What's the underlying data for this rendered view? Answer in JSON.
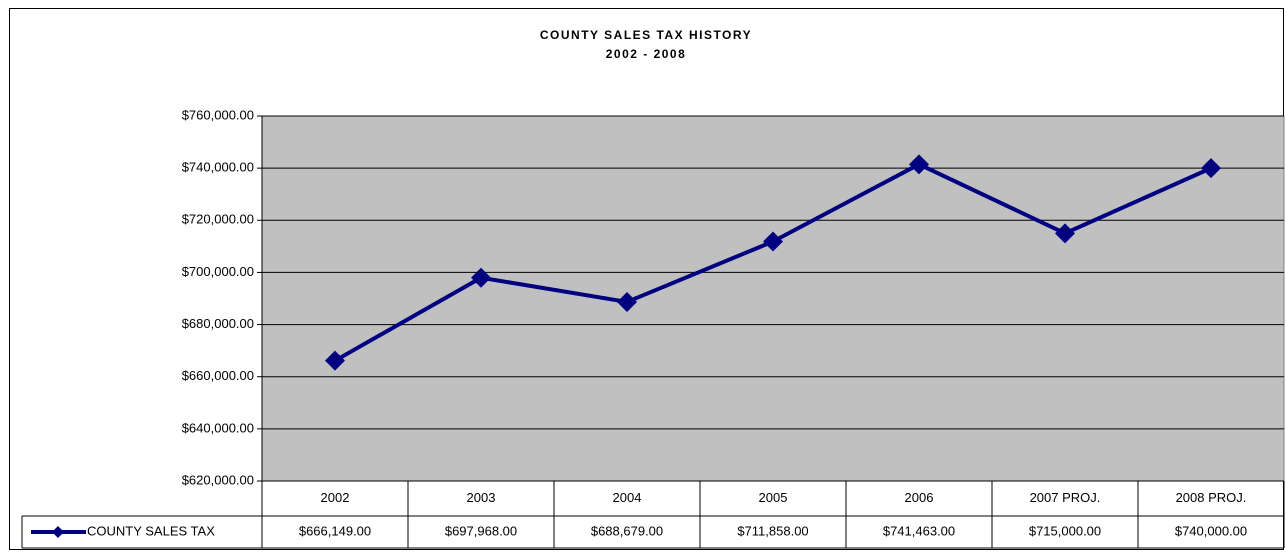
{
  "chart_data": {
    "type": "line",
    "title": "COUNTY SALES TAX HISTORY",
    "subtitle": "2002 - 2008",
    "categories": [
      "2002",
      "2003",
      "2004",
      "2005",
      "2006",
      "2007 PROJ.",
      "2008 PROJ."
    ],
    "series": [
      {
        "name": "COUNTY SALES TAX",
        "color": "#000080",
        "values": [
          666149,
          697968,
          688679,
          711858,
          741463,
          715000,
          740000
        ],
        "value_labels": [
          "$666,149.00",
          "$697,968.00",
          "$688,679.00",
          "$711,858.00",
          "$741,463.00",
          "$715,000.00",
          "$740,000.00"
        ]
      }
    ],
    "ylim": [
      620000,
      760000
    ],
    "yticks": [
      {
        "value": 620000,
        "label": "$620,000.00"
      },
      {
        "value": 640000,
        "label": "$640,000.00"
      },
      {
        "value": 660000,
        "label": "$660,000.00"
      },
      {
        "value": 680000,
        "label": "$680,000.00"
      },
      {
        "value": 700000,
        "label": "$700,000.00"
      },
      {
        "value": 720000,
        "label": "$720,000.00"
      },
      {
        "value": 740000,
        "label": "$740,000.00"
      },
      {
        "value": 760000,
        "label": "$760,000.00"
      }
    ],
    "grid": true,
    "plot_background": "#c0c0c0"
  }
}
